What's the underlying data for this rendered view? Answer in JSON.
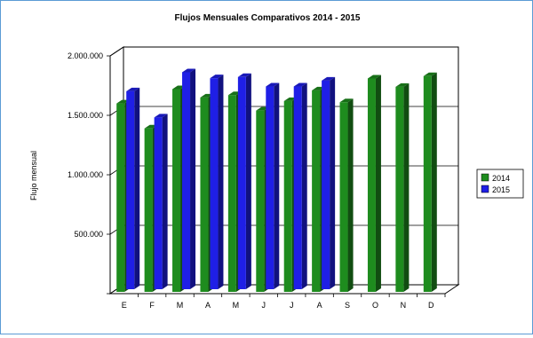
{
  "chart_data": {
    "type": "bar",
    "title": "Flujos Mensuales Comparativos 2014 - 2015",
    "xlabel": "",
    "ylabel": "Flujo mensual",
    "categories": [
      "E",
      "F",
      "M",
      "A",
      "M",
      "J",
      "J",
      "A",
      "S",
      "O",
      "N",
      "D"
    ],
    "yticks": [
      "2.000.000",
      "1.500.000",
      "1.000.000",
      "500.000"
    ],
    "ylim": [
      0,
      2000000
    ],
    "grid": true,
    "legend_position": "right",
    "series": [
      {
        "name": "2014",
        "color": "#1e8c1e",
        "values": [
          1600000,
          1390000,
          1720000,
          1650000,
          1670000,
          1540000,
          1620000,
          1710000,
          1610000,
          1810000,
          1740000,
          1830000
        ]
      },
      {
        "name": "2015",
        "color": "#1f1fe6",
        "values": [
          1680000,
          1460000,
          1840000,
          1790000,
          1800000,
          1720000,
          1720000,
          1770000,
          null,
          null,
          null,
          null
        ]
      }
    ]
  }
}
